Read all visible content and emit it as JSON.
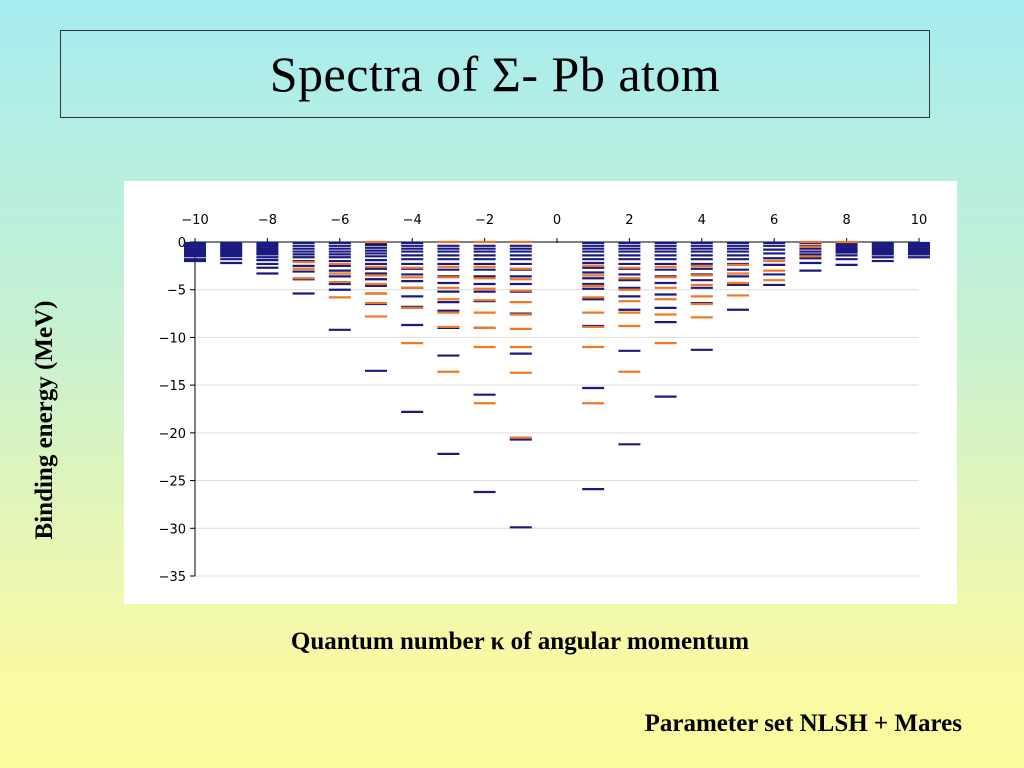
{
  "slide": {
    "title": "Spectra of Σ- Pb atom",
    "footnote": "Parameter set NLSH + Mares"
  },
  "chart_data": {
    "type": "scatter",
    "marker": "horizontal-dash",
    "xlabel": "Quantum number κ of angular momentum",
    "ylabel": "Binding energy (MeV)",
    "xlim": [
      -10,
      10
    ],
    "ylim": [
      -35,
      0
    ],
    "xticks": [
      -10,
      -8,
      -6,
      -4,
      -2,
      0,
      2,
      4,
      6,
      8,
      10
    ],
    "yticks": [
      0,
      -5,
      -10,
      -15,
      -20,
      -25,
      -30,
      -35
    ],
    "xtick_labels": [
      "−10",
      "−8",
      "−6",
      "−4",
      "−2",
      "0",
      "2",
      "4",
      "6",
      "8",
      "10"
    ],
    "ytick_labels": [
      "0",
      "−5",
      "−10",
      "−15",
      "−20",
      "−25",
      "−30",
      "−35"
    ],
    "x_axis_position": "top",
    "grid": "horizontal",
    "colors": {
      "navy": "#1a1a80",
      "orange": "#f07820"
    },
    "series": [
      {
        "color_key": "navy",
        "points": [
          {
            "x": -10,
            "y": [
              -0.1,
              -0.3,
              -0.5,
              -0.7,
              -0.9,
              -1.1,
              -1.3,
              -1.5,
              -1.8,
              -2.0
            ]
          },
          {
            "x": -9,
            "y": [
              -0.1,
              -0.3,
              -0.5,
              -0.7,
              -0.9,
              -1.1,
              -1.3,
              -1.5,
              -1.8,
              -2.2
            ]
          },
          {
            "x": -8,
            "y": [
              -0.1,
              -0.3,
              -0.5,
              -0.7,
              -0.9,
              -1.1,
              -1.3,
              -1.6,
              -1.9,
              -2.3,
              -2.7,
              -3.3
            ]
          },
          {
            "x": -7,
            "y": [
              -0.1,
              -0.4,
              -0.7,
              -1.0,
              -1.3,
              -1.6,
              -2.0,
              -2.5,
              -3.1,
              -3.9,
              -5.4
            ]
          },
          {
            "x": -6,
            "y": [
              -0.1,
              -0.4,
              -0.7,
              -1.0,
              -1.3,
              -1.6,
              -2.0,
              -2.5,
              -3.0,
              -3.6,
              -4.4,
              -5.0,
              -9.2
            ]
          },
          {
            "x": -5,
            "y": [
              -0.1,
              -0.3,
              -0.6,
              -0.9,
              -1.2,
              -1.5,
              -1.9,
              -2.3,
              -2.8,
              -3.3,
              -3.9,
              -4.6,
              -5.4,
              -6.5,
              -13.5
            ]
          },
          {
            "x": -4,
            "y": [
              -0.1,
              -0.4,
              -0.7,
              -1.0,
              -1.4,
              -1.8,
              -2.3,
              -2.8,
              -3.4,
              -4.1,
              -4.8,
              -5.7,
              -6.8,
              -8.7,
              -17.8
            ]
          },
          {
            "x": -3,
            "y": [
              -0.4,
              -0.7,
              -1.0,
              -1.4,
              -1.8,
              -2.3,
              -2.9,
              -3.6,
              -4.3,
              -5.2,
              -6.3,
              -7.2,
              -9.0,
              -11.9,
              -22.2
            ]
          },
          {
            "x": -2,
            "y": [
              -0.4,
              -0.7,
              -1.0,
              -1.4,
              -1.8,
              -2.3,
              -2.9,
              -3.6,
              -4.4,
              -5.2,
              -6.2,
              -9.0,
              -16.0,
              -26.2
            ]
          },
          {
            "x": -1,
            "y": [
              -0.4,
              -0.7,
              -1.0,
              -1.4,
              -1.8,
              -2.3,
              -2.9,
              -3.6,
              -4.4,
              -5.2,
              -7.5,
              -11.7,
              -20.7,
              -29.9
            ]
          },
          {
            "x": 1,
            "y": [
              -0.1,
              -0.4,
              -0.7,
              -1.0,
              -1.4,
              -1.8,
              -2.2,
              -2.7,
              -3.2,
              -3.8,
              -4.4,
              -4.9,
              -6.0,
              -8.8,
              -15.3,
              -25.9
            ]
          },
          {
            "x": 2,
            "y": [
              -0.1,
              -0.4,
              -0.7,
              -1.0,
              -1.4,
              -1.8,
              -2.3,
              -2.8,
              -3.4,
              -4.0,
              -4.8,
              -5.7,
              -7.1,
              -11.4,
              -21.2
            ]
          },
          {
            "x": 3,
            "y": [
              -0.1,
              -0.4,
              -0.7,
              -1.0,
              -1.4,
              -1.8,
              -2.3,
              -2.9,
              -3.6,
              -4.3,
              -5.5,
              -6.9,
              -8.4,
              -16.2
            ]
          },
          {
            "x": 4,
            "y": [
              -0.1,
              -0.4,
              -0.7,
              -1.0,
              -1.4,
              -1.8,
              -2.3,
              -2.8,
              -3.4,
              -4.0,
              -4.8,
              -6.4,
              -11.3
            ]
          },
          {
            "x": 5,
            "y": [
              -0.1,
              -0.4,
              -0.7,
              -1.0,
              -1.4,
              -1.8,
              -2.3,
              -2.9,
              -3.6,
              -4.5,
              -7.1
            ]
          },
          {
            "x": 6,
            "y": [
              -0.1,
              -0.4,
              -0.8,
              -1.2,
              -1.7,
              -2.4,
              -3.4,
              -4.5
            ]
          },
          {
            "x": 7,
            "y": [
              -0.1,
              -0.4,
              -0.7,
              -1.0,
              -1.3,
              -1.7,
              -2.2,
              -3.0
            ]
          },
          {
            "x": 8,
            "y": [
              -0.1,
              -0.3,
              -0.5,
              -0.7,
              -0.9,
              -1.1,
              -1.4,
              -1.8,
              -2.4
            ]
          },
          {
            "x": 9,
            "y": [
              -0.1,
              -0.3,
              -0.5,
              -0.7,
              -0.9,
              -1.1,
              -1.3,
              -1.6,
              -2.0
            ]
          },
          {
            "x": 10,
            "y": [
              -0.1,
              -0.3,
              -0.5,
              -0.7,
              -0.9,
              -1.1,
              -1.3,
              -1.6
            ]
          }
        ]
      },
      {
        "color_key": "orange",
        "points": [
          {
            "x": -7,
            "y": [
              -2.1,
              -2.8,
              -3.8
            ]
          },
          {
            "x": -6,
            "y": [
              -2.3,
              -3.3,
              -4.2,
              -5.8
            ]
          },
          {
            "x": -5,
            "y": [
              0.0,
              -2.6,
              -3.5,
              -4.4,
              -5.4,
              -6.4,
              -7.8
            ]
          },
          {
            "x": -4,
            "y": [
              -2.7,
              -3.7,
              -4.8,
              -6.9,
              -10.6
            ]
          },
          {
            "x": -3,
            "y": [
              0.0,
              -2.6,
              -3.7,
              -4.8,
              -6.0,
              -7.4,
              -8.9,
              -13.6
            ]
          },
          {
            "x": -2,
            "y": [
              0.0,
              -2.6,
              -3.8,
              -4.9,
              -6.1,
              -7.4,
              -9.0,
              -11.0,
              -16.9
            ]
          },
          {
            "x": -1,
            "y": [
              0.0,
              -2.8,
              -3.9,
              -5.1,
              -6.3,
              -7.6,
              -9.1,
              -11.0,
              -13.7,
              -20.5
            ]
          },
          {
            "x": 1,
            "y": [
              -2.5,
              -3.5,
              -4.6,
              -5.8,
              -7.4,
              -8.9,
              -11.0,
              -16.9
            ]
          },
          {
            "x": 2,
            "y": [
              -2.7,
              -3.8,
              -5.0,
              -6.2,
              -7.4,
              -8.8,
              -13.6
            ]
          },
          {
            "x": 3,
            "y": [
              -2.6,
              -3.7,
              -4.8,
              -6.0,
              -7.6,
              -10.6
            ]
          },
          {
            "x": 4,
            "y": [
              -2.5,
              -3.5,
              -4.5,
              -5.7,
              -6.5,
              -7.9
            ]
          },
          {
            "x": 5,
            "y": [
              -2.4,
              -3.3,
              -4.3,
              -5.6
            ]
          },
          {
            "x": 6,
            "y": [
              -2.0,
              -3.0,
              -4.0
            ]
          },
          {
            "x": 7,
            "y": [
              0.0,
              -0.5,
              -1.5
            ]
          },
          {
            "x": 8,
            "y": [
              0.0
            ]
          }
        ]
      }
    ]
  }
}
